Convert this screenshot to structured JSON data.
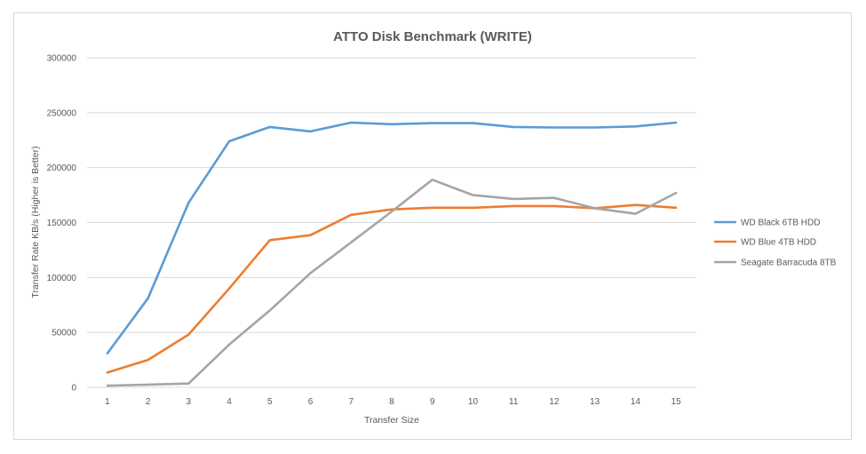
{
  "chart_data": {
    "type": "line",
    "title": "ATTO Disk Benchmark (WRITE)",
    "xlabel": "Transfer Size",
    "ylabel": "Transfer Rate KB/s (Higher is Better)",
    "x": [
      1,
      2,
      3,
      4,
      5,
      6,
      7,
      8,
      9,
      10,
      11,
      12,
      13,
      14,
      15
    ],
    "ylim": [
      0,
      300000
    ],
    "yticks": [
      0,
      50000,
      100000,
      150000,
      200000,
      250000,
      300000
    ],
    "grid": "horizontal",
    "legend_position": "right",
    "series": [
      {
        "name": "WD Black 6TB HDD",
        "color": "#5b9bd5",
        "values": [
          31000,
          81000,
          168000,
          224000,
          237000,
          233000,
          241000,
          239500,
          240500,
          240500,
          237000,
          236500,
          236500,
          237500,
          241000
        ]
      },
      {
        "name": "WD Blue 4TB HDD",
        "color": "#ed7d31",
        "values": [
          13500,
          25000,
          48000,
          90000,
          134000,
          138500,
          157000,
          162000,
          163500,
          163500,
          165000,
          165000,
          163000,
          166000,
          163500
        ]
      },
      {
        "name": "Seagate Barracuda 8TB",
        "color": "#a5a5a5",
        "values": [
          1500,
          2500,
          3500,
          39000,
          70000,
          104000,
          132000,
          160000,
          189000,
          175000,
          171500,
          172500,
          163000,
          158000,
          177000
        ]
      }
    ]
  }
}
